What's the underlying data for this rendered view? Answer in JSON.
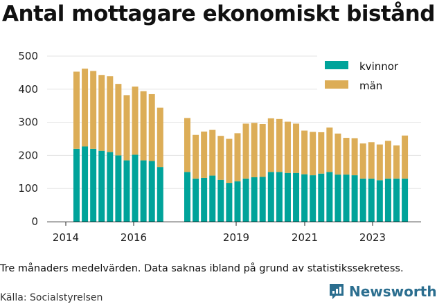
{
  "title": "Antal mottagare ekonomiskt bistånd",
  "caption": "Tre månaders medelvärden. Data saknas ibland på grund av statistikssekretess.",
  "source": "Källa: Socialstyrelsen",
  "brand": {
    "name": "Newsworthy",
    "icon": "newsworthy-logo-icon"
  },
  "colors": {
    "kvinnor": "#00a39a",
    "man": "#dcad57",
    "grid": "#e3e3e3",
    "axis": "#222222"
  },
  "chart_data": {
    "type": "bar",
    "stacked": true,
    "x_ticks": [
      "2014",
      "2016",
      "2019",
      "2021",
      "2023"
    ],
    "y_ticks": [
      "0",
      "100",
      "200",
      "300",
      "400",
      "500"
    ],
    "ylim": [
      0,
      500
    ],
    "grid": true,
    "legend_position": "top-right",
    "legend": [
      "kvinnor",
      "män"
    ],
    "groups": [
      {
        "periods": [
          "2014 Q3",
          "2014 Q4",
          "2015 Q1",
          "2015 Q2",
          "2015 Q3",
          "2015 Q4",
          "2016 Q1",
          "2016 Q2",
          "2016 Q3",
          "2016 Q4",
          "2017 Q1"
        ],
        "kvinnor": [
          220,
          227,
          220,
          214,
          210,
          200,
          185,
          202,
          185,
          183,
          165
        ],
        "man": [
          233,
          235,
          235,
          229,
          229,
          216,
          197,
          206,
          209,
          202,
          179
        ]
      },
      {
        "periods": [
          "2017 Q4",
          "2018 Q1",
          "2018 Q2",
          "2018 Q3",
          "2018 Q4",
          "2019 Q1",
          "2019 Q2",
          "2019 Q3",
          "2019 Q4",
          "2020 Q1",
          "2020 Q2",
          "2020 Q3",
          "2020 Q4",
          "2021 Q1",
          "2021 Q2",
          "2021 Q3",
          "2021 Q4",
          "2022 Q1",
          "2022 Q2",
          "2022 Q3",
          "2022 Q4",
          "2023 Q1",
          "2023 Q2",
          "2023 Q3",
          "2023 Q4",
          "2024 Q1",
          "2024 Q2"
        ],
        "kvinnor": [
          150,
          130,
          132,
          139,
          126,
          117,
          122,
          130,
          134,
          135,
          150,
          150,
          147,
          147,
          143,
          140,
          145,
          150,
          142,
          142,
          140,
          130,
          130,
          125,
          130,
          130,
          130
        ],
        "man": [
          163,
          132,
          140,
          138,
          133,
          133,
          145,
          166,
          164,
          160,
          162,
          160,
          155,
          149,
          132,
          131,
          125,
          134,
          124,
          111,
          112,
          106,
          110,
          108,
          114,
          100,
          130
        ]
      }
    ],
    "series": [
      {
        "name": "kvinnor",
        "color": "#00a39a"
      },
      {
        "name": "män",
        "color": "#dcad57"
      }
    ]
  }
}
